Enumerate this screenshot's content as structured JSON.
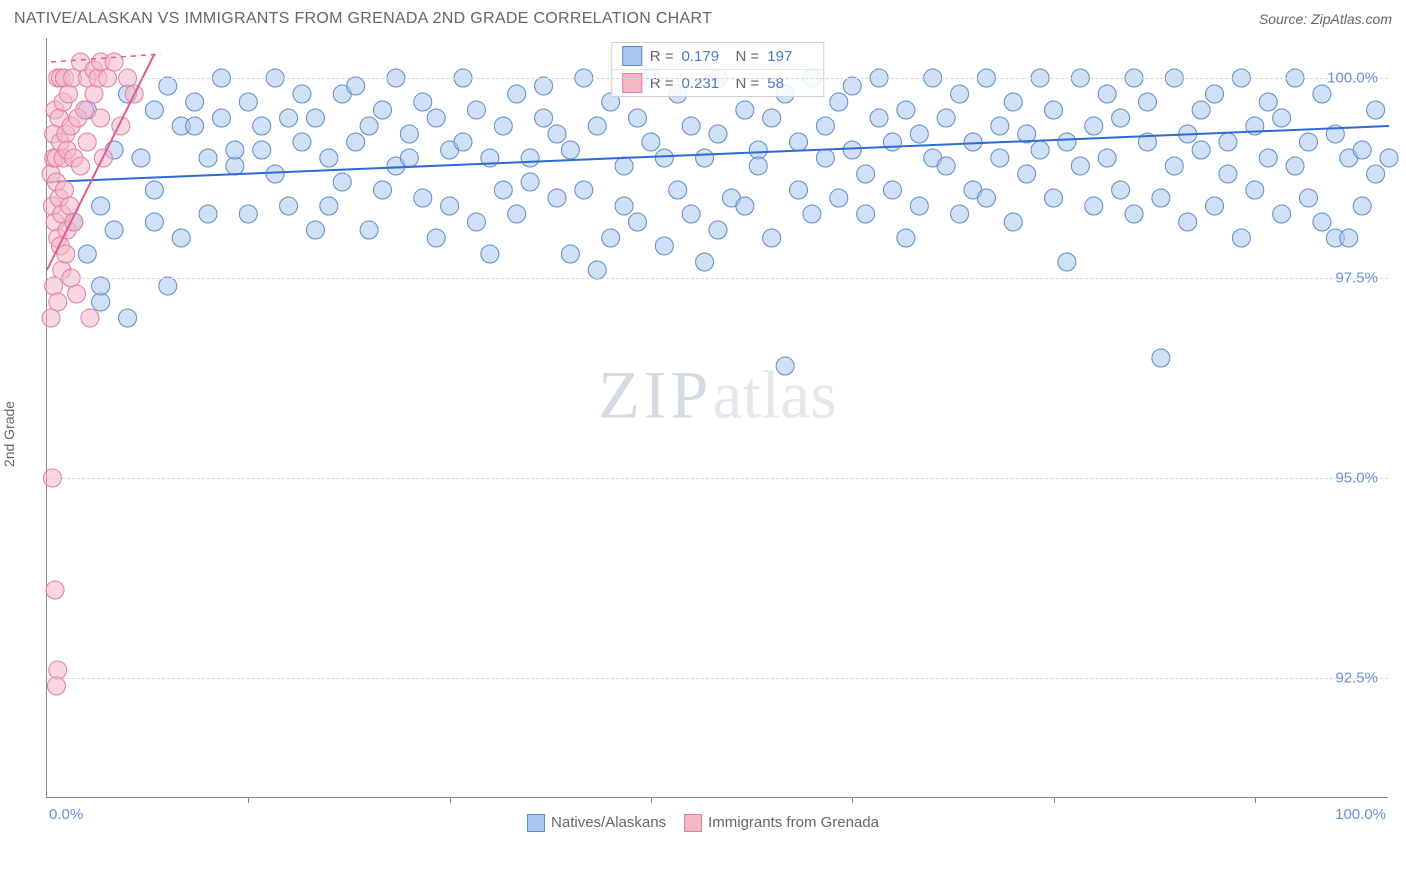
{
  "title": "NATIVE/ALASKAN VS IMMIGRANTS FROM GRENADA 2ND GRADE CORRELATION CHART",
  "source": "Source: ZipAtlas.com",
  "watermark_a": "ZIP",
  "watermark_b": "atlas",
  "y_axis_label": "2nd Grade",
  "chart": {
    "type": "scatter",
    "xlim": [
      0,
      100
    ],
    "ylim": [
      91.0,
      100.5
    ],
    "x_ticks": [
      0,
      100
    ],
    "x_tick_labels": [
      "0.0%",
      "100.0%"
    ],
    "x_minor_ticks_at": [
      15,
      30,
      45,
      60,
      75,
      90
    ],
    "y_ticks": [
      92.5,
      95.0,
      97.5,
      100.0
    ],
    "y_tick_labels": [
      "92.5%",
      "95.0%",
      "97.5%",
      "100.0%"
    ],
    "grid_color": "#d6d6d6",
    "axis_color": "#888888",
    "background_color": "#ffffff",
    "marker_radius": 9,
    "marker_opacity": 0.55,
    "series": [
      {
        "name": "Natives/Alaskans",
        "color_fill": "#a9c7ee",
        "color_stroke": "#5f8bca",
        "R": "0.179",
        "N": "197",
        "trend": {
          "x1": 0,
          "y1": 98.7,
          "x2": 100,
          "y2": 99.4,
          "color": "#2f6bd0",
          "width": 2
        },
        "points": [
          [
            2,
            98.2
          ],
          [
            3,
            99.6
          ],
          [
            3,
            97.8
          ],
          [
            4,
            97.2
          ],
          [
            4,
            98.4
          ],
          [
            4,
            97.4
          ],
          [
            5,
            99.1
          ],
          [
            5,
            98.1
          ],
          [
            6,
            99.8
          ],
          [
            6,
            97.0
          ],
          [
            7,
            99.0
          ],
          [
            8,
            98.2
          ],
          [
            8,
            99.6
          ],
          [
            8,
            98.6
          ],
          [
            9,
            99.9
          ],
          [
            9,
            97.4
          ],
          [
            10,
            99.4
          ],
          [
            10,
            98.0
          ],
          [
            11,
            99.7
          ],
          [
            11,
            99.4
          ],
          [
            12,
            99.0
          ],
          [
            12,
            98.3
          ],
          [
            13,
            100.0
          ],
          [
            13,
            99.5
          ],
          [
            14,
            98.9
          ],
          [
            14,
            99.1
          ],
          [
            15,
            99.7
          ],
          [
            15,
            98.3
          ],
          [
            16,
            99.4
          ],
          [
            16,
            99.1
          ],
          [
            17,
            100.0
          ],
          [
            17,
            98.8
          ],
          [
            18,
            99.5
          ],
          [
            18,
            98.4
          ],
          [
            19,
            99.8
          ],
          [
            19,
            99.2
          ],
          [
            20,
            98.1
          ],
          [
            20,
            99.5
          ],
          [
            21,
            98.4
          ],
          [
            21,
            99.0
          ],
          [
            22,
            98.7
          ],
          [
            22,
            99.8
          ],
          [
            23,
            99.2
          ],
          [
            23,
            99.9
          ],
          [
            24,
            98.1
          ],
          [
            24,
            99.4
          ],
          [
            25,
            99.6
          ],
          [
            25,
            98.6
          ],
          [
            26,
            100.0
          ],
          [
            26,
            98.9
          ],
          [
            27,
            99.3
          ],
          [
            27,
            99.0
          ],
          [
            28,
            99.7
          ],
          [
            28,
            98.5
          ],
          [
            29,
            98.0
          ],
          [
            29,
            99.5
          ],
          [
            30,
            99.1
          ],
          [
            30,
            98.4
          ],
          [
            31,
            100.0
          ],
          [
            31,
            99.2
          ],
          [
            32,
            98.2
          ],
          [
            32,
            99.6
          ],
          [
            33,
            97.8
          ],
          [
            33,
            99.0
          ],
          [
            34,
            98.6
          ],
          [
            34,
            99.4
          ],
          [
            35,
            99.8
          ],
          [
            35,
            98.3
          ],
          [
            36,
            99.0
          ],
          [
            36,
            98.7
          ],
          [
            37,
            99.5
          ],
          [
            37,
            99.9
          ],
          [
            38,
            98.5
          ],
          [
            38,
            99.3
          ],
          [
            39,
            97.8
          ],
          [
            39,
            99.1
          ],
          [
            40,
            98.6
          ],
          [
            40,
            100.0
          ],
          [
            41,
            97.6
          ],
          [
            41,
            99.4
          ],
          [
            42,
            98.0
          ],
          [
            42,
            99.7
          ],
          [
            43,
            98.4
          ],
          [
            43,
            98.9
          ],
          [
            44,
            99.5
          ],
          [
            44,
            98.2
          ],
          [
            45,
            100.0
          ],
          [
            45,
            99.2
          ],
          [
            46,
            97.9
          ],
          [
            46,
            99.0
          ],
          [
            47,
            98.6
          ],
          [
            47,
            99.8
          ],
          [
            48,
            98.3
          ],
          [
            48,
            99.4
          ],
          [
            49,
            99.0
          ],
          [
            49,
            97.7
          ],
          [
            50,
            98.1
          ],
          [
            50,
            100.0
          ],
          [
            50,
            99.3
          ],
          [
            51,
            98.5
          ],
          [
            52,
            99.6
          ],
          [
            52,
            98.4
          ],
          [
            53,
            99.1
          ],
          [
            53,
            98.9
          ],
          [
            54,
            98.0
          ],
          [
            54,
            99.5
          ],
          [
            55,
            96.4
          ],
          [
            55,
            99.8
          ],
          [
            56,
            99.2
          ],
          [
            56,
            98.6
          ],
          [
            57,
            100.0
          ],
          [
            57,
            98.3
          ],
          [
            58,
            99.4
          ],
          [
            58,
            99.0
          ],
          [
            59,
            98.5
          ],
          [
            59,
            99.7
          ],
          [
            60,
            99.1
          ],
          [
            60,
            99.9
          ],
          [
            61,
            98.8
          ],
          [
            61,
            98.3
          ],
          [
            62,
            99.5
          ],
          [
            62,
            100.0
          ],
          [
            63,
            98.6
          ],
          [
            63,
            99.2
          ],
          [
            64,
            98.0
          ],
          [
            64,
            99.6
          ],
          [
            65,
            99.3
          ],
          [
            65,
            98.4
          ],
          [
            66,
            100.0
          ],
          [
            66,
            99.0
          ],
          [
            67,
            98.9
          ],
          [
            67,
            99.5
          ],
          [
            68,
            98.3
          ],
          [
            68,
            99.8
          ],
          [
            69,
            98.6
          ],
          [
            69,
            99.2
          ],
          [
            70,
            100.0
          ],
          [
            70,
            98.5
          ],
          [
            71,
            99.4
          ],
          [
            71,
            99.0
          ],
          [
            72,
            99.7
          ],
          [
            72,
            98.2
          ],
          [
            73,
            99.3
          ],
          [
            73,
            98.8
          ],
          [
            74,
            100.0
          ],
          [
            74,
            99.1
          ],
          [
            75,
            98.5
          ],
          [
            75,
            99.6
          ],
          [
            76,
            97.7
          ],
          [
            76,
            99.2
          ],
          [
            77,
            98.9
          ],
          [
            77,
            100.0
          ],
          [
            78,
            99.4
          ],
          [
            78,
            98.4
          ],
          [
            79,
            99.8
          ],
          [
            79,
            99.0
          ],
          [
            80,
            98.6
          ],
          [
            80,
            99.5
          ],
          [
            81,
            100.0
          ],
          [
            81,
            98.3
          ],
          [
            82,
            99.2
          ],
          [
            82,
            99.7
          ],
          [
            83,
            98.5
          ],
          [
            83,
            96.5
          ],
          [
            84,
            98.9
          ],
          [
            84,
            100.0
          ],
          [
            85,
            99.3
          ],
          [
            85,
            98.2
          ],
          [
            86,
            99.1
          ],
          [
            86,
            99.6
          ],
          [
            87,
            98.4
          ],
          [
            87,
            99.8
          ],
          [
            88,
            98.8
          ],
          [
            88,
            99.2
          ],
          [
            89,
            100.0
          ],
          [
            89,
            98.0
          ],
          [
            90,
            99.4
          ],
          [
            90,
            98.6
          ],
          [
            91,
            99.0
          ],
          [
            91,
            99.7
          ],
          [
            92,
            98.3
          ],
          [
            92,
            99.5
          ],
          [
            93,
            100.0
          ],
          [
            93,
            98.9
          ],
          [
            94,
            99.2
          ],
          [
            94,
            98.5
          ],
          [
            95,
            99.8
          ],
          [
            95,
            98.2
          ],
          [
            96,
            98.0
          ],
          [
            96,
            99.3
          ],
          [
            97,
            98.0
          ],
          [
            97,
            99.0
          ],
          [
            98,
            98.4
          ],
          [
            98,
            99.1
          ],
          [
            99,
            99.6
          ],
          [
            99,
            98.8
          ],
          [
            100,
            99.0
          ]
        ]
      },
      {
        "name": "Immigrants from Grenada",
        "color_fill": "#f3b7c8",
        "color_stroke": "#e37ca0",
        "R": "0.231",
        "N": "58",
        "trend": {
          "x1": 0,
          "y1": 97.6,
          "x2": 8,
          "y2": 100.3,
          "color": "#e65a8a",
          "width": 2
        },
        "dashed_extend": {
          "x1": 0.3,
          "y1": 100.2,
          "x2": 8.5,
          "y2": 100.3
        },
        "points": [
          [
            0.3,
            98.8
          ],
          [
            0.4,
            98.4
          ],
          [
            0.5,
            99.3
          ],
          [
            0.5,
            99.0
          ],
          [
            0.5,
            97.4
          ],
          [
            0.6,
            99.6
          ],
          [
            0.6,
            98.2
          ],
          [
            0.7,
            98.7
          ],
          [
            0.7,
            99.0
          ],
          [
            0.8,
            100.0
          ],
          [
            0.8,
            98.0
          ],
          [
            0.8,
            97.2
          ],
          [
            0.9,
            99.5
          ],
          [
            0.9,
            98.5
          ],
          [
            1.0,
            100.0
          ],
          [
            1.0,
            97.9
          ],
          [
            1.0,
            99.2
          ],
          [
            1.1,
            98.3
          ],
          [
            1.1,
            97.6
          ],
          [
            1.2,
            99.0
          ],
          [
            1.2,
            99.7
          ],
          [
            1.3,
            98.6
          ],
          [
            1.3,
            100.0
          ],
          [
            1.4,
            97.8
          ],
          [
            1.4,
            99.3
          ],
          [
            1.5,
            98.1
          ],
          [
            1.5,
            99.1
          ],
          [
            1.6,
            99.8
          ],
          [
            1.7,
            98.4
          ],
          [
            1.8,
            97.5
          ],
          [
            1.8,
            99.4
          ],
          [
            1.9,
            100.0
          ],
          [
            2.0,
            98.2
          ],
          [
            2.0,
            99.0
          ],
          [
            2.2,
            97.3
          ],
          [
            2.3,
            99.5
          ],
          [
            2.5,
            100.2
          ],
          [
            2.5,
            98.9
          ],
          [
            2.8,
            99.6
          ],
          [
            3.0,
            100.0
          ],
          [
            3.0,
            99.2
          ],
          [
            3.2,
            97.0
          ],
          [
            3.5,
            100.1
          ],
          [
            3.5,
            99.8
          ],
          [
            3.8,
            100.0
          ],
          [
            4.0,
            99.5
          ],
          [
            4.0,
            100.2
          ],
          [
            4.2,
            99.0
          ],
          [
            4.5,
            100.0
          ],
          [
            5.0,
            100.2
          ],
          [
            5.5,
            99.4
          ],
          [
            6.0,
            100.0
          ],
          [
            6.5,
            99.8
          ],
          [
            0.4,
            95.0
          ],
          [
            0.3,
            97.0
          ],
          [
            0.6,
            93.6
          ],
          [
            0.8,
            92.6
          ],
          [
            0.7,
            92.4
          ]
        ]
      }
    ],
    "bottom_legend": {
      "items": [
        "Natives/Alaskans",
        "Immigrants from Grenada"
      ]
    }
  }
}
